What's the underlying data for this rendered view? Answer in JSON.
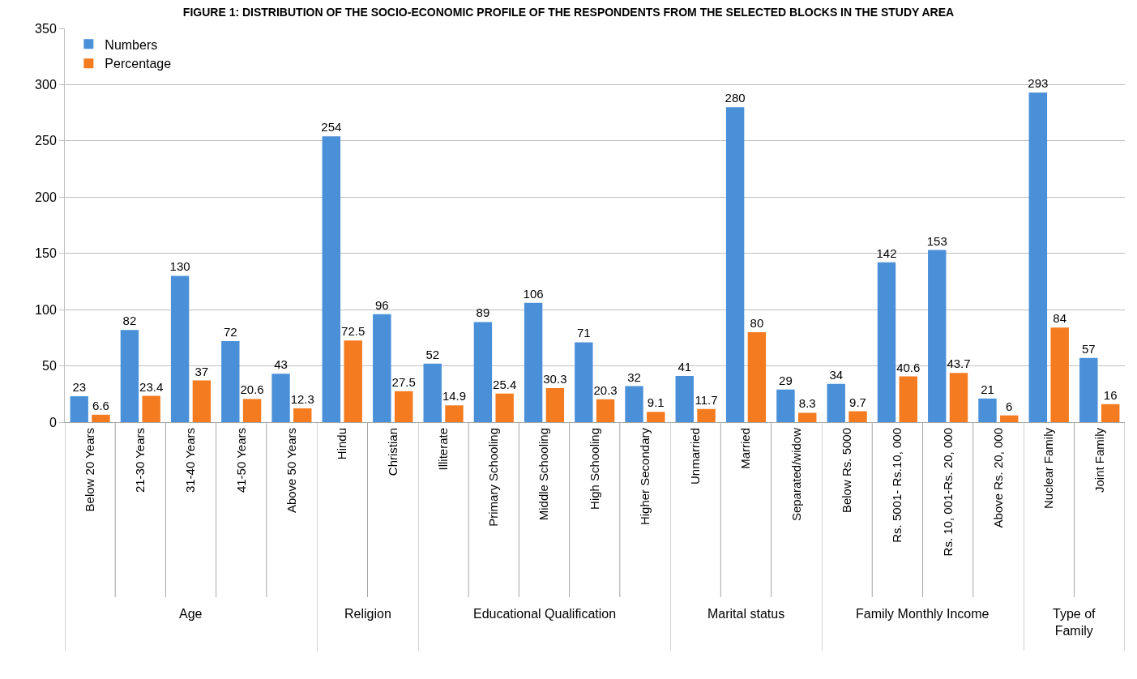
{
  "chart_data": [
    {
      "type": "bar",
      "title": "FIGURE 1: DISTRIBUTION OF THE SOCIO-ECONOMIC PROFILE OF THE RESPONDENTS FROM THE SELECTED BLOCKS IN THE STUDY AREA",
      "xlabel": "Age",
      "categories": [
        "Below 20 Years",
        "21-30 Years",
        "31-40 Years",
        "41-50 Years",
        "Above 50 Years"
      ],
      "series": [
        {
          "name": "Numbers",
          "color": "#4a90d9",
          "values": [
            23,
            82,
            130,
            72,
            43
          ]
        },
        {
          "name": "Percentage",
          "color": "#f47b20",
          "values": [
            6.6,
            23.4,
            37,
            20.6,
            12.3
          ]
        }
      ],
      "ylim": [
        0,
        350
      ],
      "yticks": [
        0,
        50,
        100,
        150,
        200,
        250,
        300,
        350
      ],
      "grid": "y",
      "legend": "top left",
      "data_labels": true
    },
    {
      "type": "bar",
      "xlabel": "Religion",
      "categories": [
        "Hindu",
        "Christian"
      ],
      "series": [
        {
          "color": "#4a90d9",
          "values": [
            254,
            96
          ]
        },
        {
          "color": "#f47b20",
          "values": [
            72.5,
            27.5
          ]
        }
      ],
      "ylim": [
        0,
        350
      ],
      "yticks": [
        0,
        50,
        100,
        150,
        200,
        250,
        300,
        350
      ],
      "grid": "y",
      "data_labels": true,
      "tick_labels": "x"
    },
    {
      "type": "bar",
      "xlabel": "Educational Qualification",
      "categories": [
        "Illiterate",
        "Primary Schooling",
        "Middle Schooling",
        "High Schooling",
        "Higher Secondary"
      ],
      "series": [
        {
          "color": "#4a90d9",
          "values": [
            52,
            89,
            106,
            71,
            32
          ]
        },
        {
          "color": "#f47b20",
          "values": [
            14.9,
            25.4,
            30.3,
            20.3,
            9.1
          ]
        }
      ],
      "ylim": [
        0,
        350
      ],
      "yticks": [
        0,
        50,
        100,
        150,
        200,
        250,
        300,
        350
      ],
      "grid": "y",
      "data_labels": true,
      "tick_labels": "x"
    },
    {
      "type": "bar",
      "xlabel": "Marital status",
      "categories": [
        "Unmarried",
        "Married",
        "Separated/widow"
      ],
      "series": [
        {
          "color": "#4a90d9",
          "values": [
            41,
            280,
            29
          ]
        },
        {
          "color": "#f47b20",
          "values": [
            11.7,
            80,
            8.3
          ]
        }
      ],
      "ylim": [
        0,
        350
      ],
      "yticks": [
        0,
        50,
        100,
        150,
        200,
        250,
        300,
        350
      ],
      "grid": "y",
      "data_labels": true,
      "tick_labels": "x"
    },
    {
      "type": "bar",
      "xlabel": "Family Monthly Income",
      "categories": [
        "Below Rs. 5000",
        "Rs. 5001- Rs.10, 000",
        "Rs. 10, 001-Rs. 20, 000",
        "Above Rs. 20, 000"
      ],
      "series": [
        {
          "color": "#4a90d9",
          "values": [
            34,
            142,
            153,
            21
          ]
        },
        {
          "color": "#f47b20",
          "values": [
            9.7,
            40.6,
            43.7,
            6
          ]
        }
      ],
      "ylim": [
        0,
        350
      ],
      "yticks": [
        0,
        50,
        100,
        150,
        200,
        250,
        300,
        350
      ],
      "grid": "y",
      "data_labels": true,
      "tick_labels": "x"
    },
    {
      "type": "bar",
      "xlabel": "Type of Family",
      "categories": [
        "Nuclear Family",
        "Joint Family"
      ],
      "series": [
        {
          "color": "#4a90d9",
          "values": [
            293,
            57
          ]
        },
        {
          "color": "#f47b20",
          "values": [
            84,
            16
          ]
        }
      ],
      "ylim": [
        0,
        350
      ],
      "yticks": [
        0,
        50,
        100,
        150,
        200,
        250,
        300,
        350
      ],
      "grid": "y",
      "data_labels": true,
      "tick_labels": "x"
    }
  ]
}
